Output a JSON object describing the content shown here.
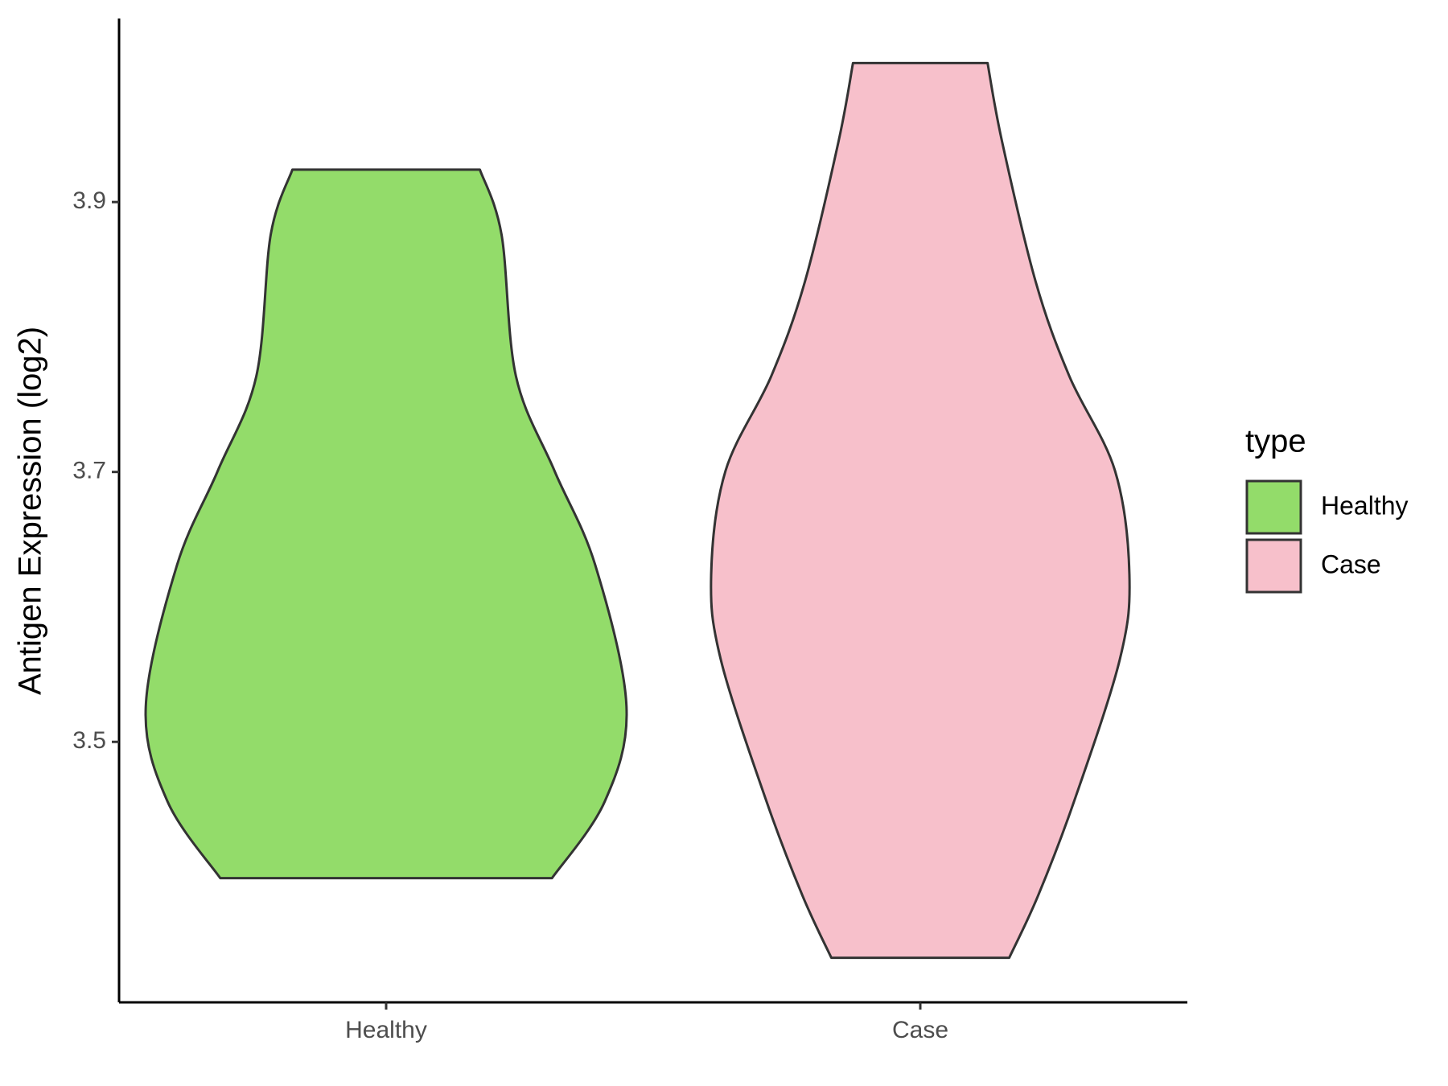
{
  "chart_data": {
    "type": "violin",
    "y_label": "Antigen Expression (log2)",
    "categories": [
      "Healthy",
      "Case"
    ],
    "series": [
      {
        "name": "Healthy",
        "color": "#93dc6a",
        "y": [
          3.924,
          3.876,
          3.771,
          3.701,
          3.631,
          3.526,
          3.456,
          3.399
        ],
        "width": [
          0.39,
          0.48,
          0.54,
          0.7,
          0.87,
          1.0,
          0.91,
          0.69
        ]
      },
      {
        "name": "Case",
        "color": "#f7c0cb",
        "y": [
          4.003,
          3.945,
          3.841,
          3.771,
          3.701,
          3.624,
          3.561,
          3.456,
          3.386,
          3.34
        ],
        "width": [
          0.28,
          0.34,
          0.48,
          0.62,
          0.81,
          0.87,
          0.83,
          0.64,
          0.49,
          0.37
        ]
      }
    ],
    "ylim": [
      3.307,
      4.036
    ],
    "yticks": [
      3.5,
      3.7,
      3.9
    ],
    "legend_title": "type",
    "legend_position": "right"
  }
}
